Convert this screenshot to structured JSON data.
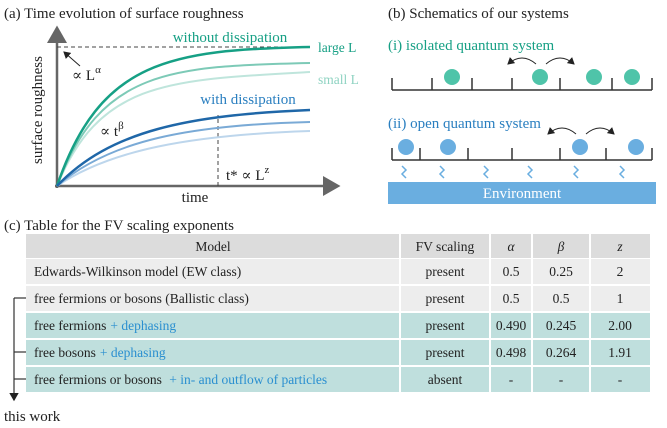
{
  "panel_a": {
    "title": "(a) Time evolution of surface roughness",
    "without_dissipation": "without dissipation",
    "large_L": "large L",
    "small_L": "small L",
    "with_dissipation": "with dissipation",
    "L_alpha": {
      "base": "∝ L",
      "sup": "α"
    },
    "t_beta": {
      "base": "∝ t",
      "sup": "β"
    },
    "t_star": {
      "base": "t* ∝ L",
      "sup": "z"
    },
    "x_label": "time",
    "y_label": "surface roughness"
  },
  "panel_b": {
    "title": "(b) Schematics of our systems",
    "isolated": "(i) isolated quantum system",
    "open": "(ii) open quantum system",
    "environment": "Environment"
  },
  "panel_c": {
    "title": "(c) Table for the FV scaling exponents",
    "table": {
      "header": [
        "Model",
        "FV scaling",
        "α",
        "β",
        "z"
      ],
      "rows": [
        [
          {
            "text": "Edwards-Wilkinson model (EW class)"
          },
          "present",
          "0.5",
          "0.25",
          "2"
        ],
        [
          {
            "text": "free fermions or bosons (Ballistic class)"
          },
          "present",
          "0.5",
          "0.5",
          "1"
        ],
        [
          {
            "text": "free fermions",
            "highlight": "+ dephasing"
          },
          "present",
          "0.490",
          "0.245",
          "2.00"
        ],
        [
          {
            "text": "free bosons",
            "highlight": "+ dephasing"
          },
          "present",
          "0.498",
          "0.264",
          "1.91"
        ],
        [
          {
            "text": "free fermions or bosons ",
            "highlight": "+ in- and outflow of particles"
          },
          "absent",
          "-",
          "-",
          "-"
        ]
      ]
    },
    "note": "this work"
  }
}
